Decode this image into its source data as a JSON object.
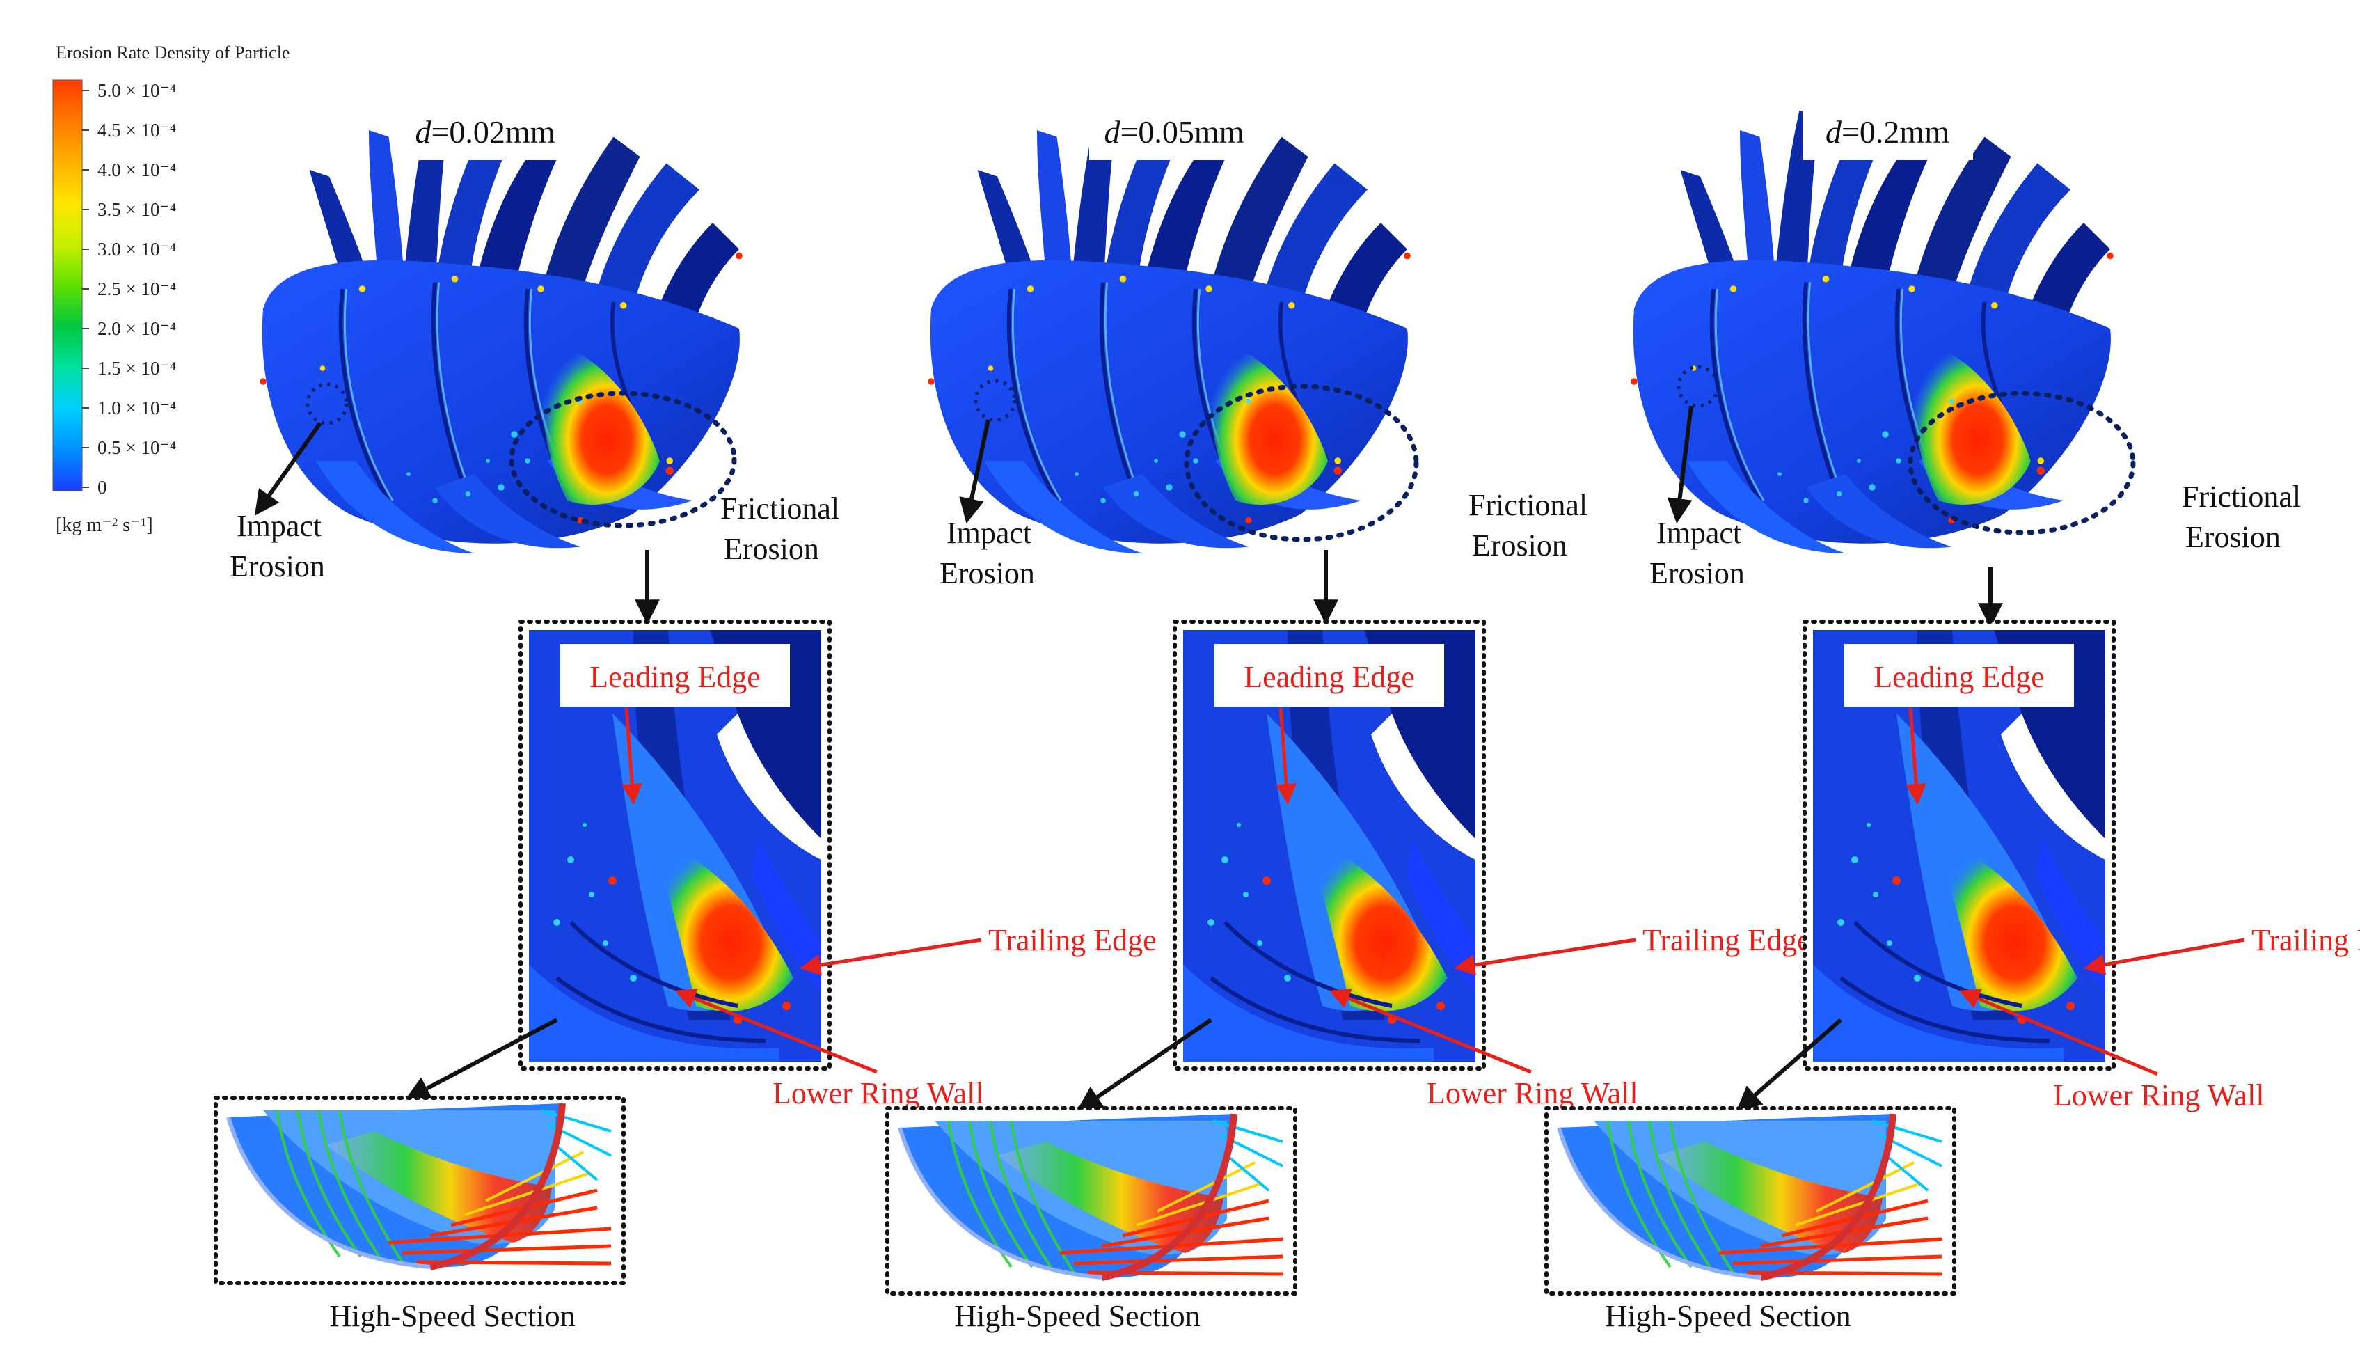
{
  "legend": {
    "title": "Erosion Rate Density of Particle",
    "unit": "[kg m⁻² s⁻¹]",
    "ticks": [
      "5.0 × 10⁻⁴",
      "4.5 × 10⁻⁴",
      "4.0 × 10⁻⁴",
      "3.5 × 10⁻⁴",
      "3.0 × 10⁻⁴",
      "2.5 × 10⁻⁴",
      "2.0 × 10⁻⁴",
      "1.5 × 10⁻⁴",
      "1.0 × 10⁻⁴",
      "0.5 × 10⁻⁴",
      "0"
    ],
    "colors": [
      "#ff3b00",
      "#ff7a00",
      "#ffb000",
      "#ffe600",
      "#c8f000",
      "#5fe000",
      "#00c840",
      "#00e0a0",
      "#00d0ff",
      "#0090ff",
      "#1a3cff"
    ]
  },
  "colors": {
    "impeller_base": "#1744e8",
    "impeller_dark": "#0a1f8f",
    "annotation_red": "#e8201a",
    "arrow_black": "#111111",
    "highlight_red": "#ff2a00",
    "highlight_yellow": "#ffe000",
    "highlight_green": "#2fd23a"
  },
  "panels": [
    {
      "diameter_var": "d",
      "diameter_value": "=0.02mm",
      "impact_label": [
        "Impact",
        "Erosion"
      ],
      "friction_label": [
        "Frictional",
        "Erosion"
      ],
      "leading_edge": "Leading Edge",
      "trailing_edge": "Trailing Edge",
      "lower_ring_wall": "Lower Ring Wall",
      "section_label": "High-Speed Section"
    },
    {
      "diameter_var": "d",
      "diameter_value": "=0.05mm",
      "impact_label": [
        "Impact",
        "Erosion"
      ],
      "friction_label": [
        "Frictional",
        "Erosion"
      ],
      "leading_edge": "Leading Edge",
      "trailing_edge": "Trailing Edge",
      "lower_ring_wall": "Lower Ring Wall",
      "section_label": "High-Speed Section"
    },
    {
      "diameter_var": "d",
      "diameter_value": "=0.2mm",
      "impact_label": [
        "Impact",
        "Erosion"
      ],
      "friction_label": [
        "Frictional",
        "Erosion"
      ],
      "leading_edge": "Leading Edge",
      "trailing_edge": "Trailing Edge",
      "lower_ring_wall": "Lower Ring Wall",
      "section_label": "High-Speed Section"
    }
  ]
}
